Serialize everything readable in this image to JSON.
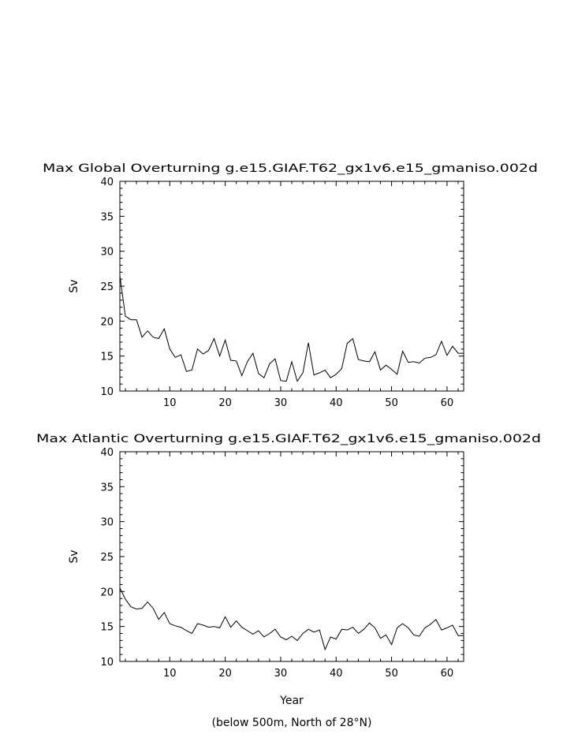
{
  "chart_data": [
    {
      "type": "line",
      "title": "Max Global Overturning g.e15.GIAF.T62_gx1v6.e15_gmaniso.002d",
      "ylabel": "Sv",
      "xlabel": "",
      "xlim": [
        1,
        63
      ],
      "ylim": [
        10,
        40
      ],
      "xticks": [
        10,
        20,
        30,
        40,
        50,
        60
      ],
      "yticks": [
        10,
        15,
        20,
        25,
        30,
        35,
        40
      ],
      "grid": false,
      "color": "#000000",
      "x": [
        1,
        2,
        3,
        4,
        5,
        6,
        7,
        8,
        9,
        10,
        11,
        12,
        13,
        14,
        15,
        16,
        17,
        18,
        19,
        20,
        21,
        22,
        23,
        24,
        25,
        26,
        27,
        28,
        29,
        30,
        31,
        32,
        33,
        34,
        35,
        36,
        37,
        38,
        39,
        40,
        41,
        42,
        43,
        44,
        45,
        46,
        47,
        48,
        49,
        50,
        51,
        52,
        53,
        54,
        55,
        56,
        57,
        58,
        59,
        60,
        61,
        62,
        63
      ],
      "values": [
        26.5,
        20.7,
        20.2,
        20.2,
        17.7,
        18.6,
        17.7,
        17.5,
        18.9,
        16.0,
        14.8,
        15.2,
        12.8,
        13.0,
        16.0,
        15.3,
        15.8,
        17.5,
        15.0,
        17.3,
        14.4,
        14.3,
        12.2,
        14.2,
        15.4,
        12.5,
        11.9,
        13.9,
        14.6,
        11.5,
        11.4,
        14.2,
        11.4,
        12.6,
        16.9,
        12.3,
        12.6,
        13.0,
        11.9,
        12.4,
        13.2,
        16.8,
        17.5,
        14.5,
        14.3,
        14.2,
        15.6,
        13.0,
        13.7,
        13.1,
        12.4,
        15.7,
        14.1,
        14.2,
        14.0,
        14.7,
        14.8,
        15.2,
        17.1,
        15.1,
        16.4,
        15.4,
        15.4
      ]
    },
    {
      "type": "line",
      "title": "Max Atlantic Overturning g.e15.GIAF.T62_gx1v6.e15_gmaniso.002d",
      "ylabel": "Sv",
      "xlabel": "Year",
      "subtitle": "(below 500m, North of 28°N)",
      "xlim": [
        1,
        63
      ],
      "ylim": [
        10,
        40
      ],
      "xticks": [
        10,
        20,
        30,
        40,
        50,
        60
      ],
      "yticks": [
        10,
        15,
        20,
        25,
        30,
        35,
        40
      ],
      "grid": false,
      "color": "#000000",
      "x": [
        1,
        2,
        3,
        4,
        5,
        6,
        7,
        8,
        9,
        10,
        11,
        12,
        13,
        14,
        15,
        16,
        17,
        18,
        19,
        20,
        21,
        22,
        23,
        24,
        25,
        26,
        27,
        28,
        29,
        30,
        31,
        32,
        33,
        34,
        35,
        36,
        37,
        38,
        39,
        40,
        41,
        42,
        43,
        44,
        45,
        46,
        47,
        48,
        49,
        50,
        51,
        52,
        53,
        54,
        55,
        56,
        57,
        58,
        59,
        60,
        61,
        62,
        63
      ],
      "values": [
        20.5,
        18.9,
        17.8,
        17.5,
        17.6,
        18.5,
        17.6,
        16.0,
        17.0,
        15.4,
        15.1,
        14.9,
        14.4,
        14.0,
        15.4,
        15.2,
        14.9,
        15.0,
        14.8,
        16.4,
        14.9,
        15.8,
        14.9,
        14.4,
        13.9,
        14.4,
        13.5,
        14.0,
        14.6,
        13.5,
        13.1,
        13.6,
        13.0,
        14.0,
        14.6,
        14.2,
        14.5,
        11.7,
        13.5,
        13.2,
        14.6,
        14.5,
        14.9,
        14.0,
        14.6,
        15.5,
        14.8,
        13.3,
        13.8,
        12.4,
        14.8,
        15.4,
        14.8,
        13.8,
        13.6,
        14.8,
        15.3,
        16.0,
        14.5,
        14.8,
        15.2,
        13.7,
        13.7
      ]
    }
  ]
}
